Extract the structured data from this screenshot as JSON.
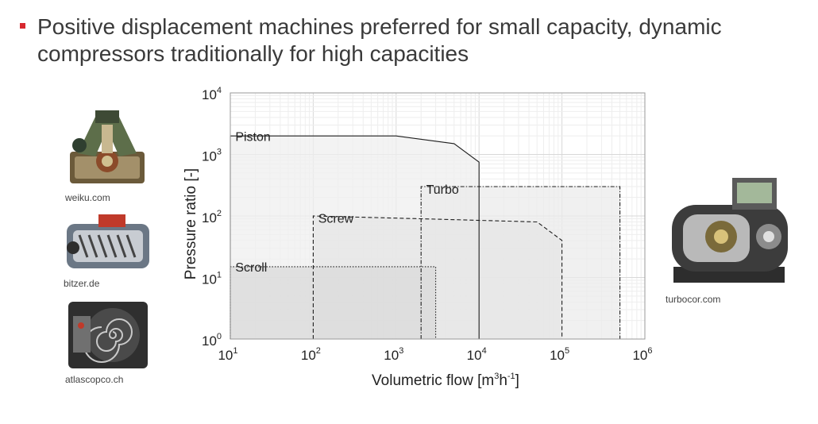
{
  "slide": {
    "bullet_color": "#d7282f",
    "title_line1": "Positive displacement machines preferred for small capacity, dynamic",
    "title_line2": "compressors traditionally for high capacities"
  },
  "images": [
    {
      "icon": "piston-compressor-icon",
      "credit": "weiku.com"
    },
    {
      "icon": "screw-compressor-icon",
      "credit": "bitzer.de"
    },
    {
      "icon": "scroll-compressor-icon",
      "credit": "atlascopco.ch"
    },
    {
      "icon": "turbo-compressor-icon",
      "credit": "turbocor.com"
    }
  ],
  "chart_data": {
    "type": "area",
    "xlabel_base": "Volumetric flow [m",
    "xlabel_sup1": "3",
    "xlabel_mid": "h",
    "xlabel_sup2": "-1",
    "xlabel_end": "]",
    "ylabel": "Pressure ratio [-]",
    "x_scale": "log",
    "y_scale": "log",
    "xlim": [
      10,
      1000000
    ],
    "ylim": [
      1,
      10000
    ],
    "grid": true,
    "x_ticks": [
      {
        "base": "10",
        "exp": "1"
      },
      {
        "base": "10",
        "exp": "2"
      },
      {
        "base": "10",
        "exp": "3"
      },
      {
        "base": "10",
        "exp": "4"
      },
      {
        "base": "10",
        "exp": "5"
      },
      {
        "base": "10",
        "exp": "6"
      }
    ],
    "y_ticks": [
      {
        "base": "10",
        "exp": "0"
      },
      {
        "base": "10",
        "exp": "1"
      },
      {
        "base": "10",
        "exp": "2"
      },
      {
        "base": "10",
        "exp": "3"
      },
      {
        "base": "10",
        "exp": "4"
      }
    ],
    "series": [
      {
        "name": "Piston",
        "line_style": "solid",
        "fill": "#efefef",
        "label_at": [
          11.5,
          1650
        ],
        "points": [
          [
            10,
            1
          ],
          [
            10,
            2000
          ],
          [
            1000,
            2000
          ],
          [
            5000,
            1500
          ],
          [
            10000,
            750
          ],
          [
            10000,
            1
          ]
        ]
      },
      {
        "name": "Turbo",
        "line_style": "dashdot",
        "fill": "#ebebeb",
        "label_at": [
          2300,
          230
        ],
        "points": [
          [
            2000,
            1
          ],
          [
            2000,
            300
          ],
          [
            500000,
            300
          ],
          [
            500000,
            1
          ]
        ]
      },
      {
        "name": "Screw",
        "line_style": "dashed",
        "fill": "#e6e6e6",
        "label_at": [
          115,
          78
        ],
        "points": [
          [
            100,
            1
          ],
          [
            100,
            100
          ],
          [
            2000,
            90
          ],
          [
            50000,
            80
          ],
          [
            100000,
            40
          ],
          [
            100000,
            1
          ]
        ]
      },
      {
        "name": "Scroll",
        "line_style": "dotted",
        "fill": "#d9d9d9",
        "label_at": [
          11.5,
          12.5
        ],
        "points": [
          [
            10,
            1
          ],
          [
            10,
            15
          ],
          [
            3000,
            15
          ],
          [
            3000,
            1
          ]
        ]
      }
    ]
  }
}
